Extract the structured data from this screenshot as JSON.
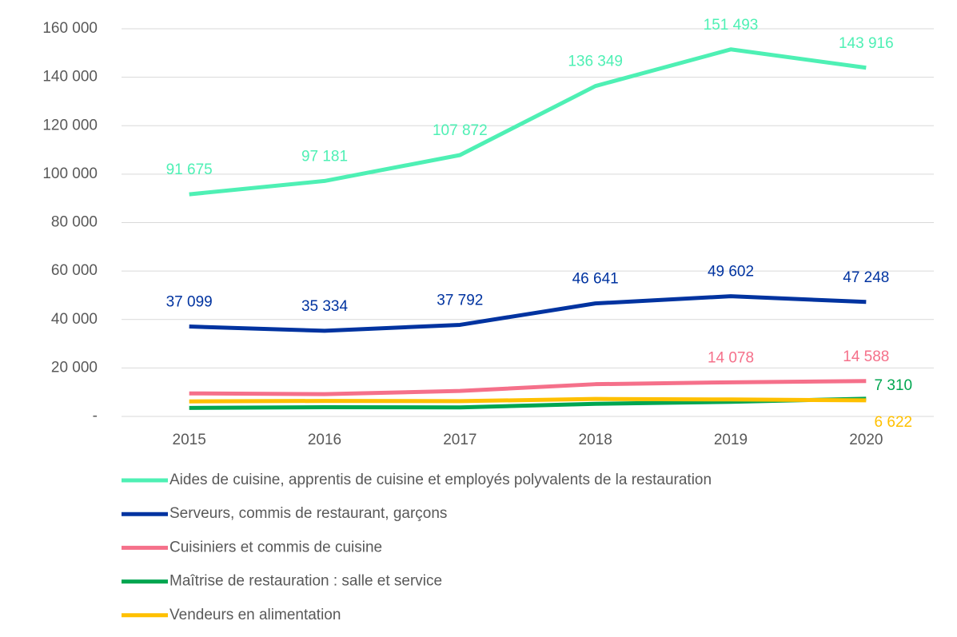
{
  "chart_data": {
    "type": "line",
    "categories": [
      "2015",
      "2016",
      "2017",
      "2018",
      "2019",
      "2020"
    ],
    "series": [
      {
        "name": "Aides de cuisine, apprentis de cuisine et employés polyvalents de la restauration",
        "color": "#4ef0b4",
        "values": [
          91675,
          97181,
          107872,
          136349,
          151493,
          143916
        ],
        "value_labels": [
          "91 675",
          "97 181",
          "107 872",
          "136 349",
          "151 493",
          "143 916"
        ]
      },
      {
        "name": "Serveurs, commis de restaurant, garçons",
        "color": "#0033a0",
        "values": [
          37099,
          35334,
          37792,
          46641,
          49602,
          47248
        ],
        "value_labels": [
          "37 099",
          "35 334",
          "37 792",
          "46 641",
          "49 602",
          "47 248"
        ]
      },
      {
        "name": "Cuisiniers et commis de cuisine",
        "color": "#f5708a",
        "values": [
          9500,
          9200,
          10500,
          13300,
          14078,
          14588
        ],
        "value_labels": [
          null,
          null,
          null,
          null,
          "14 078",
          "14 588"
        ]
      },
      {
        "name": "Maîtrise de restauration : salle et service",
        "color": "#00a650",
        "values": [
          3500,
          3800,
          3700,
          5200,
          6000,
          7310
        ],
        "value_labels": [
          null,
          null,
          null,
          null,
          null,
          "7 310"
        ]
      },
      {
        "name": "Vendeurs en alimentation",
        "color": "#ffc000",
        "values": [
          6200,
          6400,
          6300,
          7200,
          7000,
          6622
        ],
        "value_labels": [
          null,
          null,
          null,
          null,
          null,
          "6 622"
        ]
      }
    ],
    "ylim": [
      0,
      160000
    ],
    "yticks": [
      {
        "value": 0,
        "label": "-"
      },
      {
        "value": 20000,
        "label": "20 000"
      },
      {
        "value": 40000,
        "label": "40 000"
      },
      {
        "value": 60000,
        "label": "60 000"
      },
      {
        "value": 80000,
        "label": "80 000"
      },
      {
        "value": 100000,
        "label": "100 000"
      },
      {
        "value": 120000,
        "label": "120 000"
      },
      {
        "value": 140000,
        "label": "140 000"
      },
      {
        "value": 160000,
        "label": "160 000"
      }
    ],
    "grid": true
  }
}
